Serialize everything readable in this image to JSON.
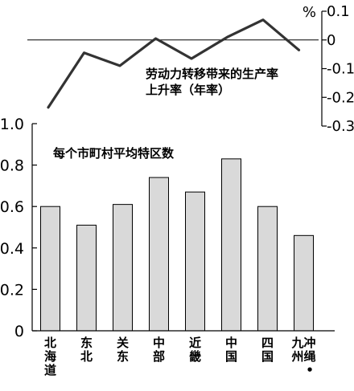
{
  "chart_data": [
    {
      "type": "bar",
      "annotation": "每个市町村平均特区数",
      "categories": [
        [
          "北",
          "海",
          "道"
        ],
        [
          "东",
          "北"
        ],
        [
          "关",
          "东"
        ],
        [
          "中",
          "部"
        ],
        [
          "近",
          "畿"
        ],
        [
          "中",
          "国"
        ],
        [
          "四",
          "国"
        ],
        [
          "冲",
          "绳",
          "•",
          "九",
          "州"
        ]
      ],
      "values": [
        0.6,
        0.51,
        0.61,
        0.74,
        0.67,
        0.83,
        0.6,
        0.46
      ],
      "ylim": [
        0,
        1.0
      ],
      "yticks": [
        "0",
        "0.2",
        "0.4",
        "0.6",
        "0.8",
        "1.0"
      ],
      "grid": false,
      "bar_color": "#d9d9d9"
    },
    {
      "type": "line",
      "annotation_lines": [
        "劳动力转移带来的生产率",
        "上升率（年率）"
      ],
      "unit": "%",
      "values": [
        -0.235,
        -0.045,
        -0.09,
        0.005,
        -0.065,
        0.01,
        0.07,
        -0.035
      ],
      "ylim": [
        -0.3,
        0.1
      ],
      "yticks": [
        "0.1",
        "0",
        "-0.1",
        "-0.2",
        "-0.3"
      ],
      "zero_line": true,
      "line_color": "#333333"
    }
  ]
}
